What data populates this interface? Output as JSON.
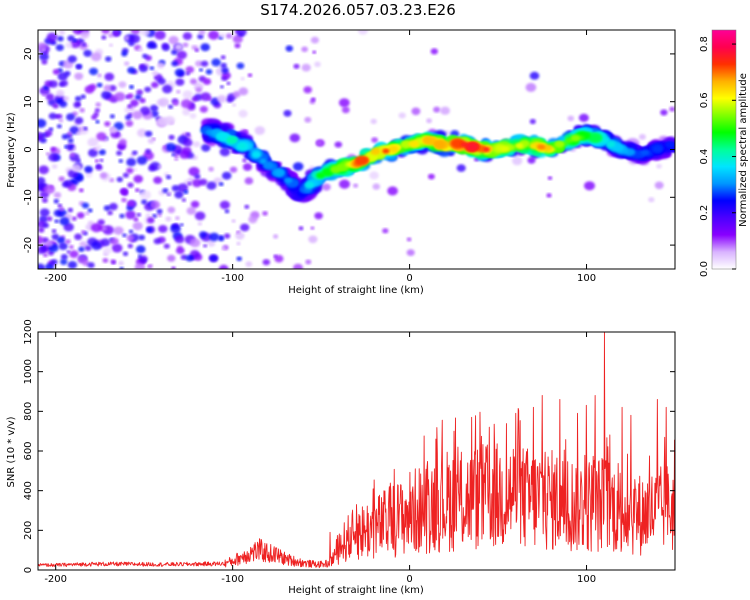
{
  "figure_title": "S174.2026.057.03.23.E26",
  "chart_data": [
    {
      "type": "heatmap",
      "title": "S174.2026.057.03.23.E26",
      "xlabel": "Height of straight line (km)",
      "ylabel": "Frequency (Hz)",
      "xlim": [
        -210,
        150
      ],
      "ylim": [
        -25,
        25
      ],
      "xticks": [
        -200,
        -100,
        0,
        100
      ],
      "xtick_labels": [
        "-200",
        "-100",
        "0",
        "100"
      ],
      "yticks": [
        -20,
        -10,
        0,
        10,
        20
      ],
      "ytick_labels": [
        "-20",
        "-10",
        "0",
        "10",
        "20"
      ],
      "colorbar": {
        "label": "Normalized spectral amplitude",
        "range": [
          0.0,
          0.85
        ],
        "ticks": [
          0.0,
          0.2,
          0.4,
          0.6,
          0.8
        ],
        "tick_labels": [
          "0.0",
          "0.2",
          "0.4",
          "0.6",
          "0.8"
        ],
        "colormap": [
          "#ffffff",
          "#d9b3ff",
          "#8800ff",
          "#4b00ff",
          "#0000ff",
          "#0096ff",
          "#00e5ff",
          "#00ff99",
          "#00ff00",
          "#80ff00",
          "#ffff00",
          "#ffb000",
          "#ff3000",
          "#ff0050",
          "#ff0096"
        ]
      },
      "ridge_frequency": {
        "x": [
          -115,
          -100,
          -90,
          -80,
          -70,
          -62,
          -55,
          -48,
          -40,
          -30,
          -20,
          -10,
          0,
          10,
          20,
          30,
          40,
          50,
          60,
          70,
          80,
          90,
          100,
          110,
          120,
          130,
          140,
          150
        ],
        "y": [
          4,
          2,
          0,
          -3,
          -6,
          -9,
          -7,
          -5,
          -4,
          -3,
          -1,
          0,
          1,
          2,
          1,
          1,
          0,
          0,
          1,
          1,
          0,
          2,
          3,
          2,
          0,
          -1,
          0,
          1
        ]
      },
      "ridge_amplitude": {
        "x": [
          -115,
          -100,
          -80,
          -60,
          -50,
          -40,
          -30,
          -20,
          -10,
          0,
          10,
          20,
          30,
          40,
          50,
          60,
          70,
          80,
          90,
          100,
          110,
          120,
          130,
          150
        ],
        "y": [
          0.3,
          0.45,
          0.35,
          0.3,
          0.55,
          0.6,
          0.75,
          0.8,
          0.7,
          0.65,
          0.7,
          0.8,
          0.85,
          0.8,
          0.7,
          0.65,
          0.75,
          0.7,
          0.6,
          0.55,
          0.45,
          0.35,
          0.3,
          0.3
        ]
      }
    },
    {
      "type": "line",
      "title": "",
      "xlabel": "Height of straight line (km)",
      "ylabel": "SNR (10 * v/v)",
      "xlim": [
        -210,
        150
      ],
      "ylim": [
        0,
        1200
      ],
      "xticks": [
        -200,
        -100,
        0,
        100
      ],
      "xtick_labels": [
        "-200",
        "-100",
        "0",
        "100"
      ],
      "yticks": [
        0,
        200,
        400,
        600,
        800,
        1000,
        1200
      ],
      "ytick_labels": [
        "0",
        "200",
        "400",
        "600",
        "800",
        "1000",
        "1200"
      ],
      "color": "#ee2222",
      "series": [
        {
          "name": "SNR",
          "x": [
            -210,
            -200,
            -180,
            -160,
            -140,
            -120,
            -105,
            -100,
            -95,
            -90,
            -85,
            -80,
            -75,
            -70,
            -65,
            -60,
            -55,
            -50,
            -45,
            -40,
            -35,
            -30,
            -25,
            -20,
            -15,
            -10,
            -5,
            0,
            5,
            10,
            15,
            20,
            25,
            30,
            35,
            40,
            45,
            50,
            55,
            60,
            65,
            70,
            75,
            80,
            85,
            90,
            95,
            100,
            105,
            110,
            115,
            120,
            125,
            130,
            135,
            140,
            145,
            150
          ],
          "y": [
            25,
            25,
            30,
            30,
            28,
            30,
            32,
            45,
            65,
            85,
            100,
            85,
            75,
            55,
            45,
            35,
            30,
            28,
            35,
            110,
            160,
            185,
            200,
            215,
            230,
            250,
            270,
            290,
            300,
            320,
            340,
            350,
            355,
            355,
            360,
            365,
            370,
            370,
            380,
            385,
            360,
            355,
            360,
            350,
            345,
            330,
            335,
            325,
            330,
            335,
            320,
            300,
            285,
            280,
            290,
            295,
            310,
            315
          ]
        }
      ],
      "peaks": {
        "x": [
          -45,
          -30,
          -5,
          15,
          25,
          35,
          45,
          60,
          70,
          75,
          85,
          95,
          100,
          105,
          110,
          120,
          125,
          140,
          145
        ],
        "y": [
          190,
          330,
          430,
          660,
          700,
          770,
          720,
          790,
          820,
          880,
          860,
          790,
          830,
          880,
          1200,
          820,
          780,
          860,
          820
        ]
      }
    }
  ]
}
